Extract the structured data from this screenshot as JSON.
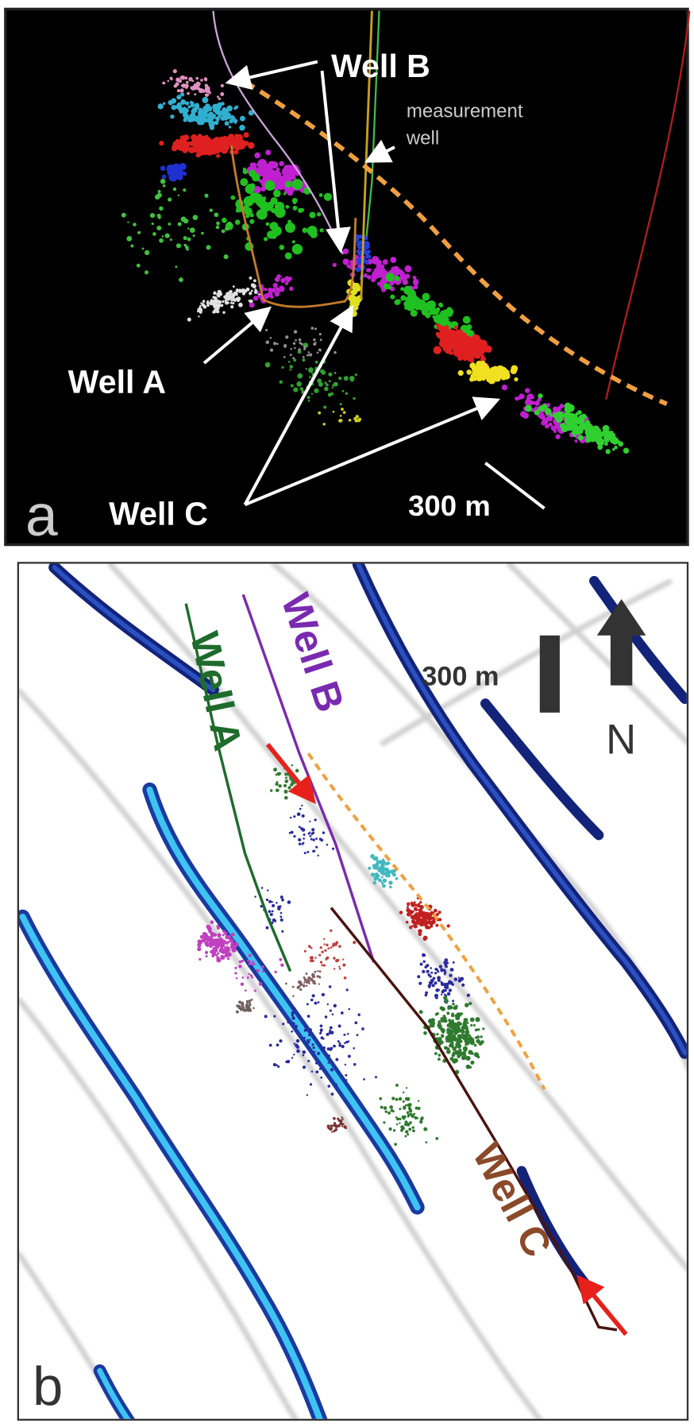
{
  "panel_a": {
    "label": "a",
    "well_b": "Well B",
    "measurement_well": "measurement well",
    "well_a": "Well A",
    "well_c": "Well C",
    "scale": "300 m"
  },
  "panel_b": {
    "label": "b",
    "well_a": "Well A",
    "well_b": "Well B",
    "well_c": "Well C",
    "scale": "300 m",
    "north": "N"
  }
}
